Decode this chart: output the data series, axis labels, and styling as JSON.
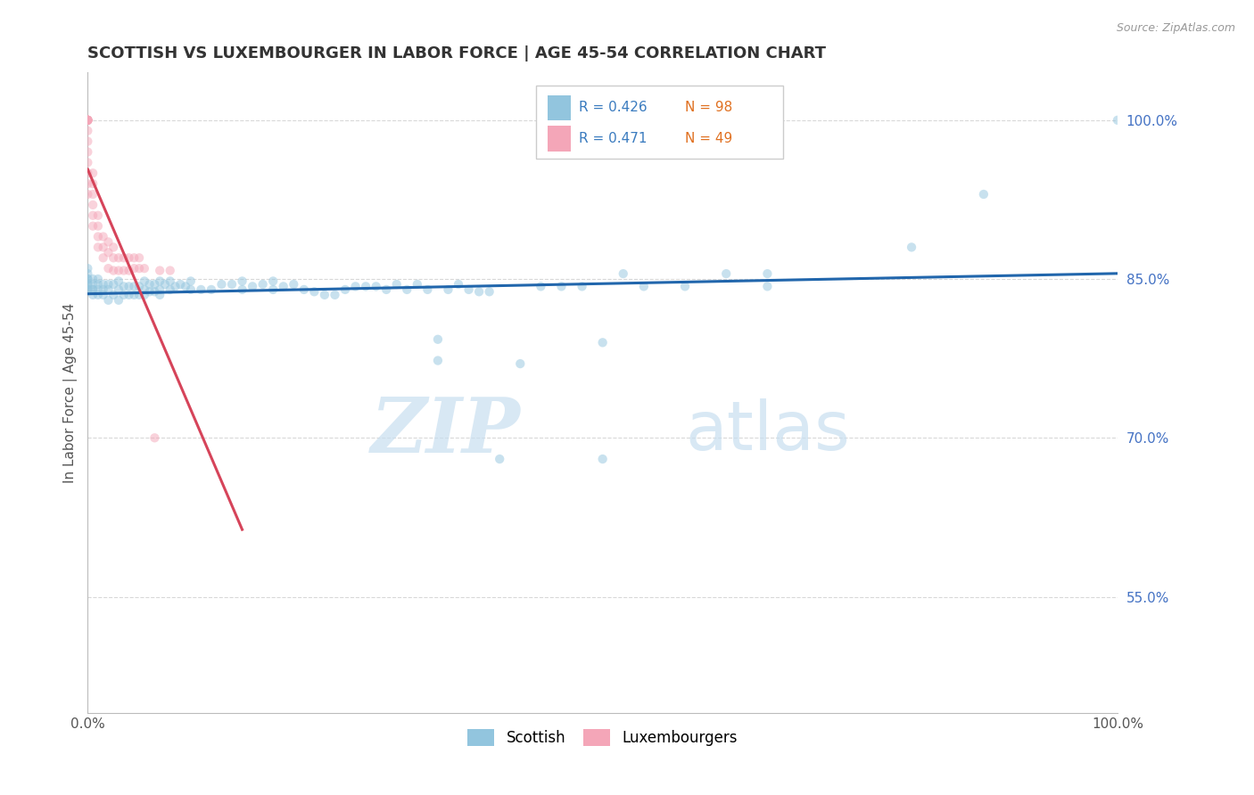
{
  "title": "SCOTTISH VS LUXEMBOURGER IN LABOR FORCE | AGE 45-54 CORRELATION CHART",
  "source": "Source: ZipAtlas.com",
  "ylabel": "In Labor Force | Age 45-54",
  "xlim": [
    0.0,
    1.0
  ],
  "ylim": [
    0.44,
    1.045
  ],
  "y_ticks_right": [
    1.0,
    0.85,
    0.7,
    0.55
  ],
  "y_tick_labels_right": [
    "100.0%",
    "85.0%",
    "70.0%",
    "55.0%"
  ],
  "background_color": "#ffffff",
  "grid_color": "#d8d8d8",
  "blue_color": "#92c5de",
  "pink_color": "#f4a6b8",
  "blue_line_color": "#2166ac",
  "pink_line_color": "#d6445a",
  "r_blue": 0.426,
  "n_blue": 98,
  "r_pink": 0.471,
  "n_pink": 49,
  "watermark_zip": "ZIP",
  "watermark_atlas": "atlas",
  "scatter_alpha": 0.5,
  "marker_size": 55,
  "blue_x": [
    0.0,
    0.0,
    0.0,
    0.0,
    0.0,
    0.0,
    0.0,
    0.0,
    0.005,
    0.005,
    0.005,
    0.005,
    0.005,
    0.01,
    0.01,
    0.01,
    0.01,
    0.015,
    0.015,
    0.015,
    0.02,
    0.02,
    0.02,
    0.025,
    0.025,
    0.03,
    0.03,
    0.03,
    0.035,
    0.035,
    0.04,
    0.04,
    0.045,
    0.045,
    0.05,
    0.05,
    0.055,
    0.055,
    0.055,
    0.06,
    0.06,
    0.065,
    0.065,
    0.07,
    0.07,
    0.07,
    0.075,
    0.08,
    0.08,
    0.085,
    0.09,
    0.095,
    0.1,
    0.1,
    0.11,
    0.12,
    0.13,
    0.14,
    0.15,
    0.15,
    0.16,
    0.17,
    0.18,
    0.18,
    0.19,
    0.2,
    0.21,
    0.22,
    0.23,
    0.24,
    0.25,
    0.26,
    0.27,
    0.28,
    0.29,
    0.3,
    0.31,
    0.32,
    0.33,
    0.34,
    0.34,
    0.35,
    0.36,
    0.37,
    0.38,
    0.39,
    0.4,
    0.42,
    0.44,
    0.46,
    0.48,
    0.5,
    0.5,
    0.52,
    0.54,
    0.58,
    0.62,
    0.66,
    0.66,
    0.8,
    0.87,
    1.0
  ],
  "blue_y": [
    0.84,
    0.84,
    0.845,
    0.845,
    0.85,
    0.85,
    0.855,
    0.86,
    0.835,
    0.84,
    0.84,
    0.845,
    0.85,
    0.835,
    0.84,
    0.845,
    0.85,
    0.835,
    0.84,
    0.845,
    0.83,
    0.84,
    0.845,
    0.835,
    0.845,
    0.83,
    0.84,
    0.848,
    0.835,
    0.843,
    0.835,
    0.843,
    0.835,
    0.843,
    0.835,
    0.843,
    0.835,
    0.84,
    0.848,
    0.838,
    0.845,
    0.838,
    0.845,
    0.835,
    0.84,
    0.848,
    0.845,
    0.84,
    0.848,
    0.843,
    0.845,
    0.843,
    0.84,
    0.848,
    0.84,
    0.84,
    0.845,
    0.845,
    0.84,
    0.848,
    0.843,
    0.845,
    0.84,
    0.848,
    0.843,
    0.845,
    0.84,
    0.838,
    0.835,
    0.835,
    0.84,
    0.843,
    0.843,
    0.843,
    0.84,
    0.845,
    0.84,
    0.845,
    0.84,
    0.773,
    0.793,
    0.84,
    0.845,
    0.84,
    0.838,
    0.838,
    0.68,
    0.77,
    0.843,
    0.843,
    0.843,
    0.68,
    0.79,
    0.855,
    0.843,
    0.843,
    0.855,
    0.843,
    0.855,
    0.88,
    0.93,
    1.0
  ],
  "pink_x": [
    0.0,
    0.0,
    0.0,
    0.0,
    0.0,
    0.0,
    0.0,
    0.0,
    0.0,
    0.0,
    0.0,
    0.0,
    0.0,
    0.0,
    0.0,
    0.0,
    0.005,
    0.005,
    0.005,
    0.005,
    0.005,
    0.005,
    0.01,
    0.01,
    0.01,
    0.01,
    0.015,
    0.015,
    0.015,
    0.02,
    0.02,
    0.02,
    0.025,
    0.025,
    0.025,
    0.03,
    0.03,
    0.035,
    0.035,
    0.04,
    0.04,
    0.045,
    0.045,
    0.05,
    0.05,
    0.055,
    0.065,
    0.07,
    0.08
  ],
  "pink_y": [
    0.93,
    0.94,
    0.95,
    0.96,
    0.97,
    0.98,
    0.99,
    1.0,
    1.0,
    1.0,
    1.0,
    1.0,
    1.0,
    1.0,
    1.0,
    1.0,
    0.9,
    0.91,
    0.92,
    0.93,
    0.94,
    0.95,
    0.88,
    0.89,
    0.9,
    0.91,
    0.87,
    0.88,
    0.89,
    0.86,
    0.875,
    0.885,
    0.858,
    0.87,
    0.88,
    0.858,
    0.87,
    0.858,
    0.87,
    0.858,
    0.87,
    0.86,
    0.87,
    0.86,
    0.87,
    0.86,
    0.7,
    0.858,
    0.858
  ]
}
